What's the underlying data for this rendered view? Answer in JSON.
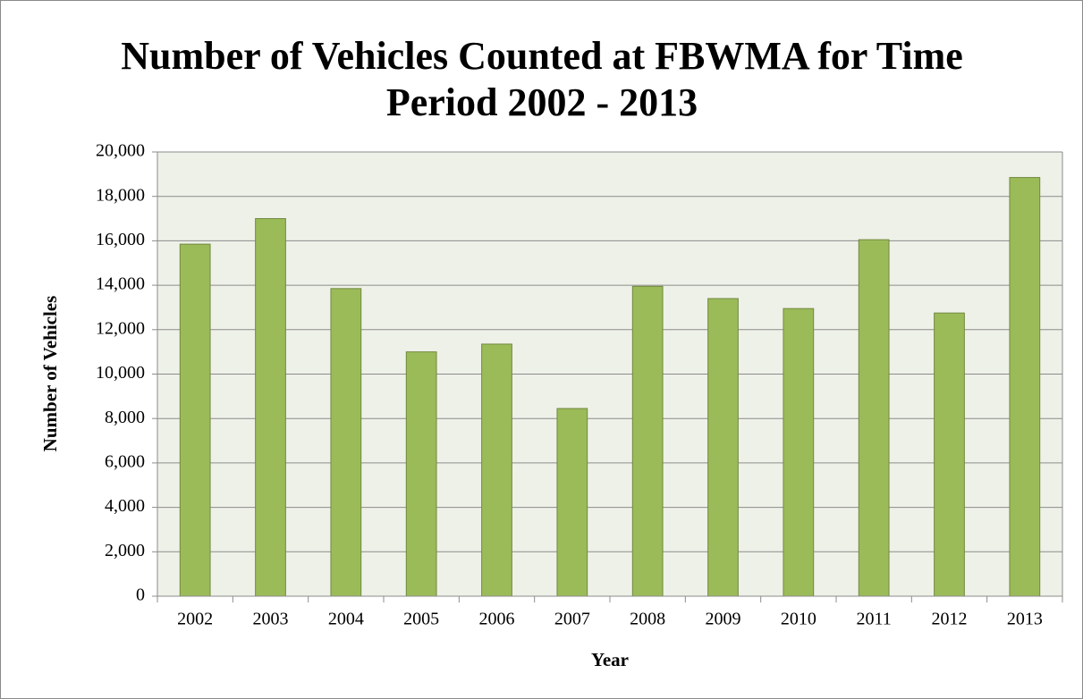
{
  "chart_data": {
    "type": "bar",
    "title": "Number of Vehicles Counted at FBWMA for Time Period 2002 - 2013",
    "x_label": "Year",
    "y_label": "Number of Vehicles",
    "categories": [
      "2002",
      "2003",
      "2004",
      "2005",
      "2006",
      "2007",
      "2008",
      "2009",
      "2010",
      "2011",
      "2012",
      "2013"
    ],
    "values": [
      15850,
      17000,
      13850,
      11000,
      11350,
      8450,
      13950,
      13400,
      12950,
      16050,
      12750,
      18850
    ],
    "color": "#9bbb59",
    "ylim": [
      0,
      20000
    ],
    "yticks": [
      0,
      {
        "value": 2000,
        "label": "2,000"
      },
      {
        "value": 4000,
        "label": "4,000"
      },
      {
        "value": 6000,
        "label": "6,000"
      },
      {
        "value": 8000,
        "label": "8,000"
      },
      {
        "value": 10000,
        "label": "10,000"
      },
      {
        "value": 12000,
        "label": "12,000"
      },
      {
        "value": 14000,
        "label": "14,000"
      },
      {
        "value": 16000,
        "label": "16,000"
      },
      {
        "value": 18000,
        "label": "18,000"
      },
      {
        "value": 20000,
        "label": "20,000"
      }
    ],
    "grid": true
  }
}
